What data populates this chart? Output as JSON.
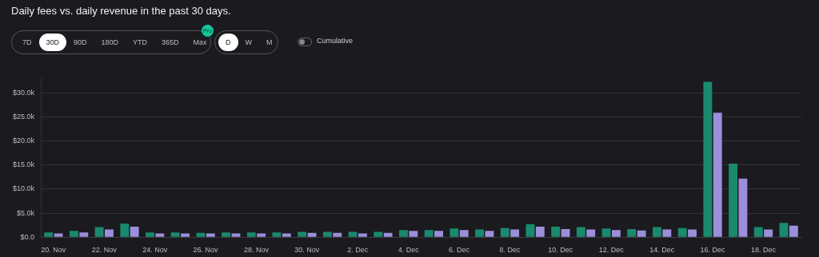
{
  "chart_data": {
    "type": "bar",
    "title": "Daily fees vs. daily revenue in the past 30 days.",
    "categories": [
      "20. Nov",
      null,
      "22. Nov",
      null,
      "24. Nov",
      null,
      "26. Nov",
      null,
      "28. Nov",
      null,
      "30. Nov",
      null,
      "2. Dec",
      null,
      "4. Dec",
      null,
      "6. Dec",
      null,
      "8. Dec",
      null,
      "10. Dec",
      null,
      "12. Dec",
      null,
      "14. Dec",
      null,
      "16. Dec",
      null,
      "18. Dec",
      null
    ],
    "series": [
      {
        "color": "#1a8a6e",
        "values": [
          1000,
          1300,
          2100,
          2800,
          1000,
          1000,
          900,
          1000,
          1000,
          1000,
          1100,
          1100,
          1100,
          1100,
          1500,
          1500,
          1800,
          1600,
          1900,
          2700,
          2200,
          2100,
          1800,
          1700,
          2100,
          1900,
          32300,
          15300,
          2100,
          3000
        ]
      },
      {
        "color": "#9b8fdb",
        "values": [
          800,
          1000,
          1600,
          2200,
          800,
          800,
          800,
          800,
          800,
          800,
          900,
          900,
          800,
          900,
          1300,
          1300,
          1500,
          1300,
          1600,
          2200,
          1700,
          1600,
          1500,
          1400,
          1600,
          1600,
          25900,
          12200,
          1600,
          2400
        ]
      }
    ],
    "ylim": [
      0,
      33000
    ],
    "yticks": [
      {
        "value": 0,
        "label": "$0.0"
      },
      {
        "value": 5000,
        "label": "$5.0k"
      },
      {
        "value": 10000,
        "label": "$10.0k"
      },
      {
        "value": 15000,
        "label": "$15.0k"
      },
      {
        "value": 20000,
        "label": "$20.0k"
      },
      {
        "value": 25000,
        "label": "$25.0k"
      },
      {
        "value": 30000,
        "label": "$30.0k"
      }
    ],
    "grid": "y",
    "annotations": [
      "7D",
      "30D",
      "90D",
      "180D",
      "YTD",
      "365D",
      "Max",
      "Pro",
      "D",
      "W",
      "M",
      "Cumulative"
    ]
  }
}
